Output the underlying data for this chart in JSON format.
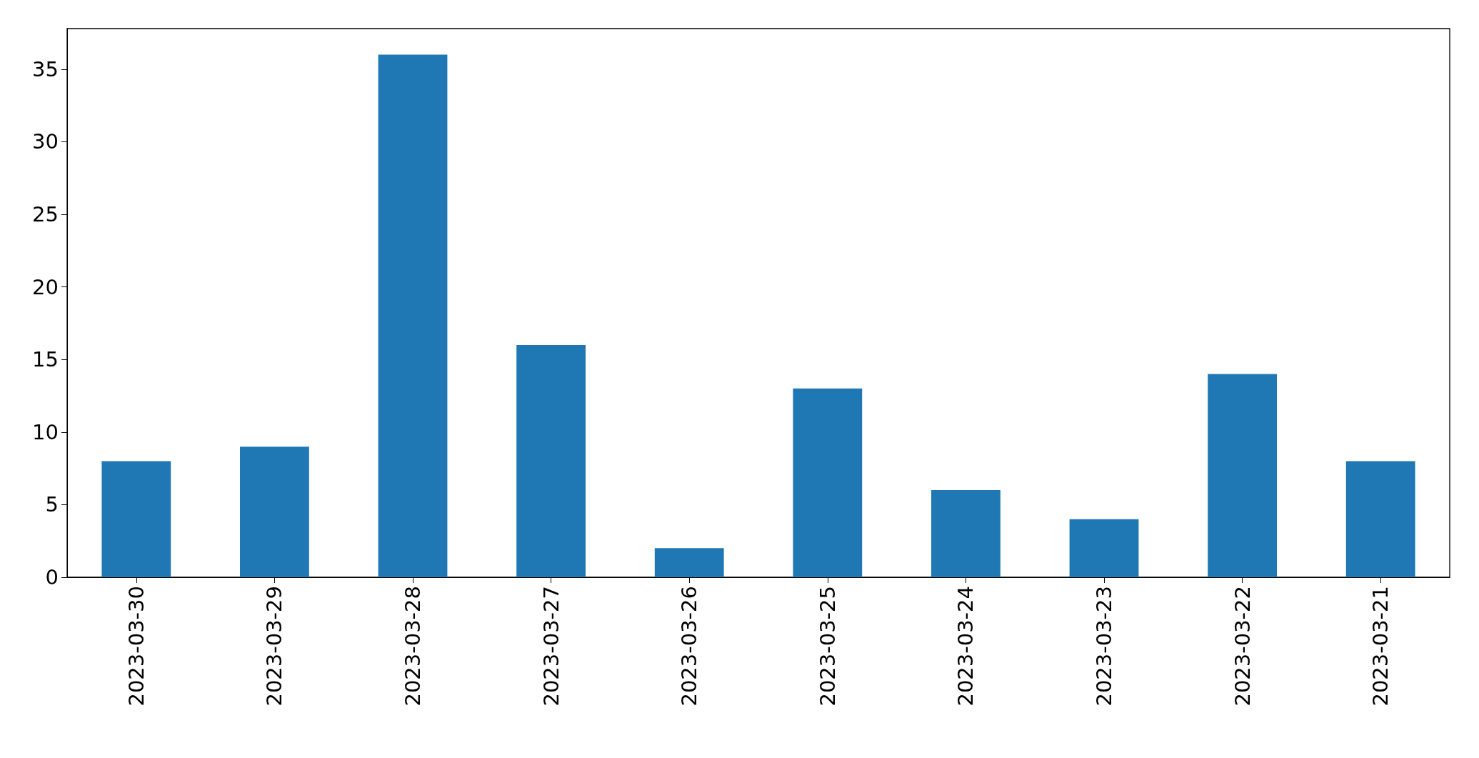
{
  "chart_data": {
    "type": "bar",
    "categories": [
      "2023-03-30",
      "2023-03-29",
      "2023-03-28",
      "2023-03-27",
      "2023-03-26",
      "2023-03-25",
      "2023-03-24",
      "2023-03-23",
      "2023-03-22",
      "2023-03-21"
    ],
    "values": [
      8,
      9,
      36,
      16,
      2,
      13,
      6,
      4,
      14,
      8
    ],
    "color": "#1f77b4",
    "ylim": [
      0,
      37.8
    ],
    "yticks": [
      0,
      5,
      10,
      15,
      20,
      25,
      30,
      35
    ],
    "grid": false
  }
}
